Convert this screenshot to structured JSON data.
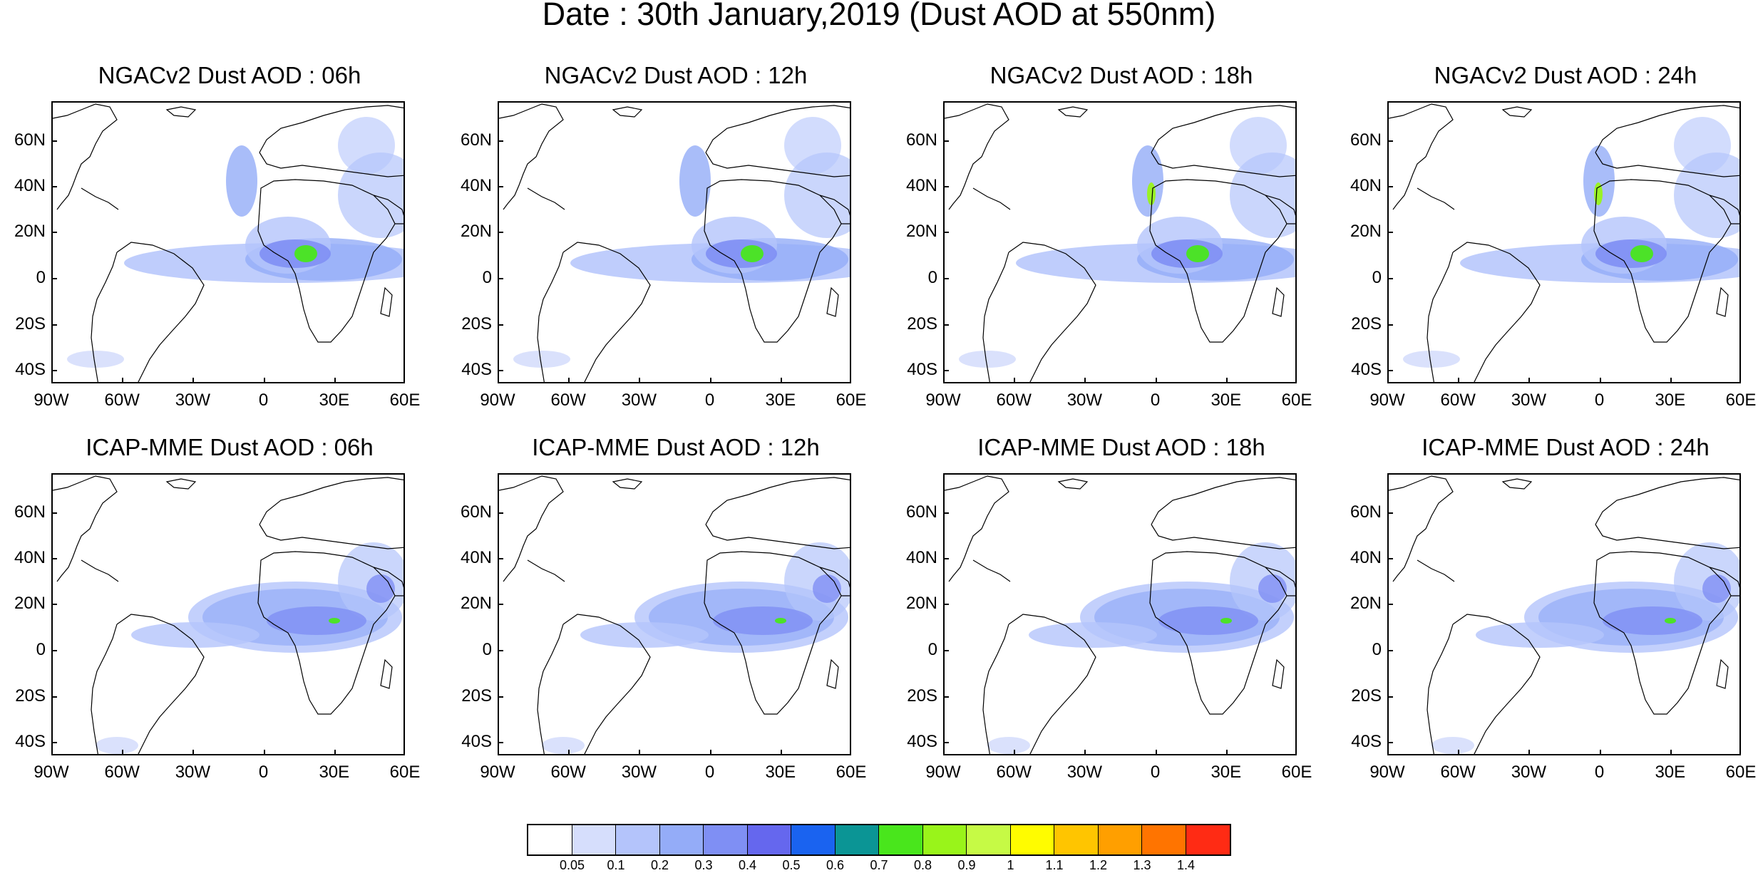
{
  "title": "Date : 30th January,2019 (Dust AOD at 550nm)",
  "lat_labels": [
    "60N",
    "40N",
    "20N",
    "0",
    "20S",
    "40S"
  ],
  "lon_labels": [
    "90W",
    "60W",
    "30W",
    "0",
    "30E",
    "60E"
  ],
  "panels": [
    {
      "title": "NGACv2 Dust AOD : 06h"
    },
    {
      "title": "NGACv2 Dust AOD : 12h"
    },
    {
      "title": "NGACv2 Dust AOD : 18h"
    },
    {
      "title": "NGACv2 Dust AOD : 24h"
    },
    {
      "title": "ICAP-MME Dust AOD : 06h"
    },
    {
      "title": "ICAP-MME Dust AOD : 12h"
    },
    {
      "title": "ICAP-MME Dust AOD : 18h"
    },
    {
      "title": "ICAP-MME Dust AOD : 24h"
    }
  ],
  "colorbar": {
    "labels": [
      "0.05",
      "0.1",
      "0.2",
      "0.3",
      "0.4",
      "0.5",
      "0.6",
      "0.7",
      "0.8",
      "0.9",
      "1",
      "1.1",
      "1.2",
      "1.3",
      "1.4"
    ],
    "colors": [
      "#ffffff",
      "#d6defc",
      "#b4c4fb",
      "#94acf8",
      "#7f8ff4",
      "#6567ee",
      "#1a63f0",
      "#0b9595",
      "#49e61c",
      "#99f41a",
      "#c6fa45",
      "#fffc00",
      "#ffc500",
      "#ff9f00",
      "#ff7400",
      "#ff2b14"
    ]
  }
}
